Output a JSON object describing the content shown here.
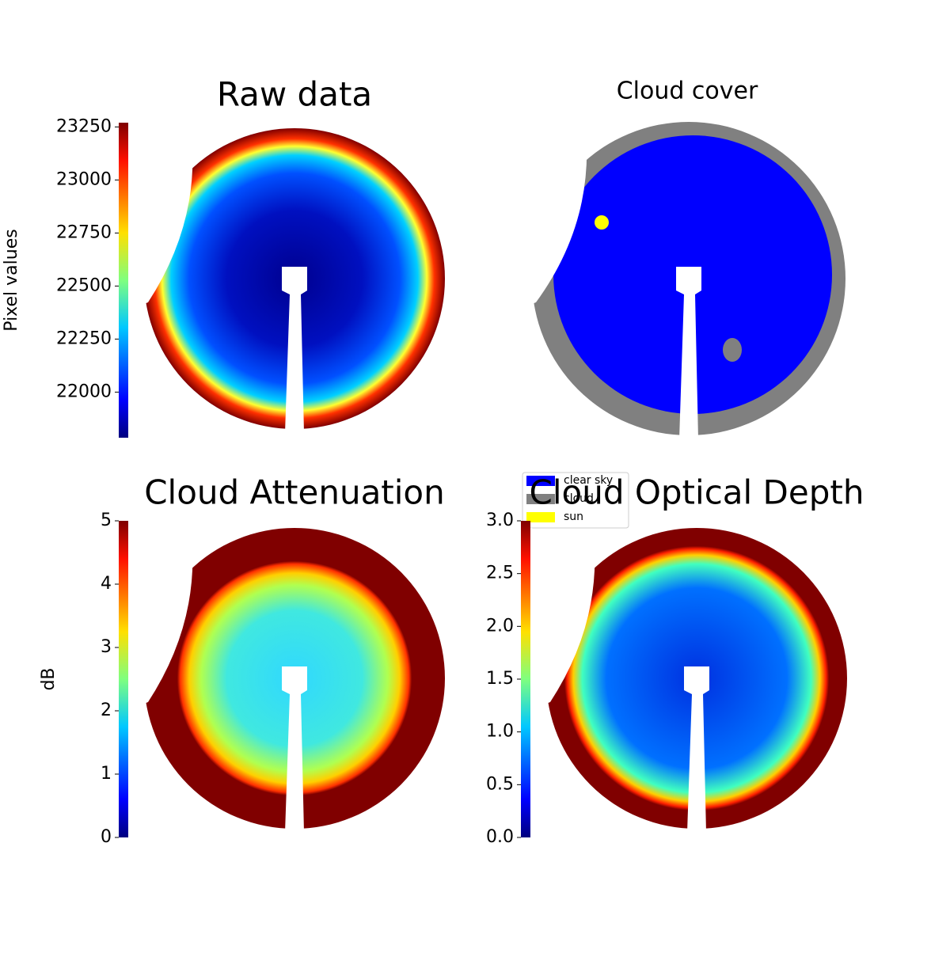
{
  "chart_data": [
    {
      "type": "image",
      "title": "Raw data",
      "colorbar": {
        "label": "Pixel values",
        "lim": [
          21785,
          23270
        ],
        "ticks": [
          22000,
          22250,
          22500,
          22750,
          23000,
          23250
        ]
      }
    },
    {
      "type": "image",
      "title": "Cloud cover",
      "legend": [
        {
          "name": "clear sky",
          "color": "#0000ff"
        },
        {
          "name": "cloud",
          "color": "#808080"
        },
        {
          "name": "sun",
          "color": "#ffff00"
        }
      ]
    },
    {
      "type": "image",
      "title": "Cloud Attenuation",
      "colorbar": {
        "label": "dB",
        "lim": [
          0,
          5
        ],
        "ticks": [
          0,
          1,
          2,
          3,
          4,
          5
        ]
      }
    },
    {
      "type": "image",
      "title": "Cloud Optical Depth",
      "colorbar": {
        "lim": [
          0,
          3
        ],
        "ticks": [
          {
            "value": 0,
            "label": "0.0"
          },
          {
            "value": 0.5,
            "label": "0.5"
          },
          {
            "value": 1,
            "label": "1.0"
          },
          {
            "value": 1.5,
            "label": "1.5"
          },
          {
            "value": 2,
            "label": "2.0"
          },
          {
            "value": 2.5,
            "label": "2.5"
          },
          {
            "value": 3,
            "label": "3.0"
          }
        ]
      }
    }
  ]
}
